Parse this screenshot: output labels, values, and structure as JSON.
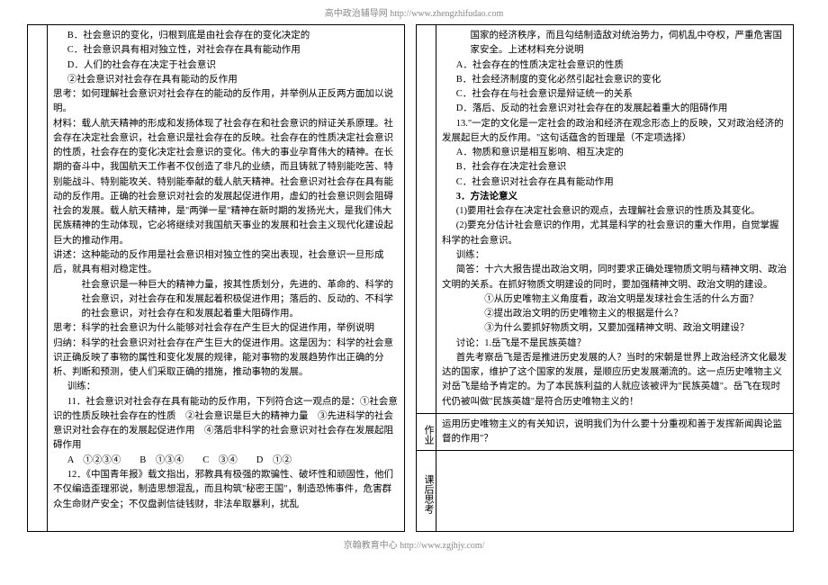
{
  "header": "高中政治辅导网  http://www.zhengzhifudao.com",
  "footer": "京翰教育中心  http://www.zgjhjy.com/",
  "left": {
    "lines": [
      {
        "cls": "indent-1",
        "t": "B．社会意识的变化，归根到底是由社会存在的变化决定的"
      },
      {
        "cls": "indent-1",
        "t": "C．社会意识具有相对独立性，对社会存在具有能动作用"
      },
      {
        "cls": "indent-1",
        "t": "D．人们的社会存在决定于社会意识"
      },
      {
        "cls": "indent-1",
        "t": "②社会意识对社会存在具有能动的反作用"
      },
      {
        "cls": "",
        "t": "思考：如何理解社会意识对社会存在的能动的反作用，并举例从正反两方面加以说明。"
      },
      {
        "cls": "",
        "t": "材料：载人航天精神的形成和发扬体现了社会存在和社会意识的辩证关系原理。社会存在决定社会意识，社会意识是社会存在的反映。社会存在的性质决定社会意识的性质，社会存在的变化决定社会意识的变化。伟大的事业孕育伟大的精神。在长期的奋斗中，我国航天工作者不仅创造了非凡的业绩，而且铸就了特别能吃苦、特别能战斗、特别能攻关、特别能奉献的载人航天精神。社会意识对社会存在具有能动的反作用。正确的社会意识对社会的发展起促进作用，虚幻的社会意识则会阻碍社会的发展。载人航天精神，是\"两弹一星\"精神在新时期的发扬光大，是我们伟大民族精神的生动体现，它必将继续对我国航天事业的发展和社会主义现代化建设起巨大的推动作用。"
      },
      {
        "cls": "",
        "t": "讲述：这种能动的反作用是社会意识相对独立性的突出表现，社会意识一旦形成后，就具有相对稳定性。"
      },
      {
        "cls": "indent-2",
        "t": "社会意识是一种巨大的精神力量，按其性质划分，先进的、革命的、科学的社会意识，对社会存在和发展起着积极促进作用；落后的、反动的、不科学的社会意识，对社会存在和发展起着重大阻碍作用。"
      },
      {
        "cls": "",
        "t": "思考：科学的社会意识为什么能够对社会存在产生巨大的促进作用，举例说明"
      },
      {
        "cls": "",
        "t": "归纳：科学的社会意识对社会存在产生巨大的促进作用。这是因为：科学的社会意识正确反映了事物的属性和变化发展的规律，能对事物的发展趋势作出正确的分析、判断和预测，使人们采取正确的措施，推动事物的发展。"
      },
      {
        "cls": "indent-1",
        "t": "训练："
      },
      {
        "cls": "indent-1",
        "t": "11．社会意识对社会存在具有能动的反作用，下列符合这一观点的是：①社会意识的性质反映社会存在的性质　②社会意识是巨大的精神力量　③先进科学的社会意识对社会存在的发展起促进作用　④落后非科学的社会意识对社会存在发展起阻碍作用"
      },
      {
        "cls": "indent-1",
        "t": "A　①②③④　　B　①③④　　C　③④　　D　①②"
      },
      {
        "cls": "indent-1",
        "t": "12．《中国青年报》载文指出，邪教具有极强的欺骗性、破坏性和顽固性，他们不仅编造歪理邪说，制造思想混乱，而且构筑\"秘密王国\"，制造恐怖事件，危害群众生命财产安全；不仅盘剥信徒钱财，非法牟取暴利，扰乱"
      }
    ]
  },
  "right": {
    "main_lines": [
      {
        "cls": "indent-2",
        "t": "国家的经济秩序，而且勾结制造敌对统治势力，伺机乱中夺权，严重危害国家安全。上述材料充分说明"
      },
      {
        "cls": "indent-1",
        "t": "A．社会存在的性质决定社会意识的性质"
      },
      {
        "cls": "indent-1",
        "t": "B．社会经济制度的变化必然引起社会意识的变化"
      },
      {
        "cls": "indent-1",
        "t": "C．社会存在与社会意识是辩证统一的关系"
      },
      {
        "cls": "indent-1",
        "t": "D．落后、反动的社会意识对社会存在的发展起着重大的阻碍作用"
      },
      {
        "cls": "indent-1",
        "t": "13.\"一定的文化是一定社会的政治和经济在观念形态上的反映，又对政治经济的发展起巨大的反作用。\"这句话蕴含的哲理是（不定项选择）"
      },
      {
        "cls": "indent-1",
        "t": "A．物质和意识是相互影响、相互决定的"
      },
      {
        "cls": "indent-1",
        "t": "B．社会存在决定社会意识"
      },
      {
        "cls": "indent-1",
        "t": "C．社会意识对社会存在具有能动作用"
      },
      {
        "cls": "indent-1 bold",
        "t": "3．方法论意义"
      },
      {
        "cls": "indent-1",
        "t": "(1)要用社会存在决定社会意识的观点，去理解社会意识的性质及其变化。"
      },
      {
        "cls": "indent-1",
        "t": "(2)要充分估计社会意识的作用，尤其是科学的社会意识的重大作用，自觉掌握科学的社会意识。"
      },
      {
        "cls": "indent-1",
        "t": "训练："
      },
      {
        "cls": "indent-1",
        "t": "简答：十六大报告提出政治文明，同时要求正确处理物质文明与精神文明、政治文明的关系。在抓好物质文明建设的同时，要加强精神文明、政治文明的建设。"
      },
      {
        "cls": "indent-3",
        "t": "①从历史唯物主义角度看，政治文明是发球社会生活的什么方面？"
      },
      {
        "cls": "indent-3",
        "t": "②提出政治文明的历史唯物主义的根据是什么？"
      },
      {
        "cls": "indent-3",
        "t": "③为什么要抓好物质文明，又要加强精神文明、政治文明建设？"
      },
      {
        "cls": "indent-1",
        "t": "讨论：1.岳飞是不是民族英雄？"
      },
      {
        "cls": "indent-1",
        "t": "首先考察岳飞是否是推进历史发展的人？当时的宋朝是世界上政治经济文化最发达的国家，维护了这个国家的发展，是顺应历史发展潮流的。这一点历史唯物主义对岳飞是给予肯定的。为了本民族利益的人就应该被评为\"民族英雄\"。岳飞在现时代仍被叫做\"民族英雄\"是符合历史唯物主义的！"
      }
    ],
    "hw_label": "作业",
    "hw_text": "运用历史唯物主义的有关知识，说明我们为什么要十分重视和善于发挥新闻舆论监督的作用\"？",
    "after_label": "课后思考"
  }
}
